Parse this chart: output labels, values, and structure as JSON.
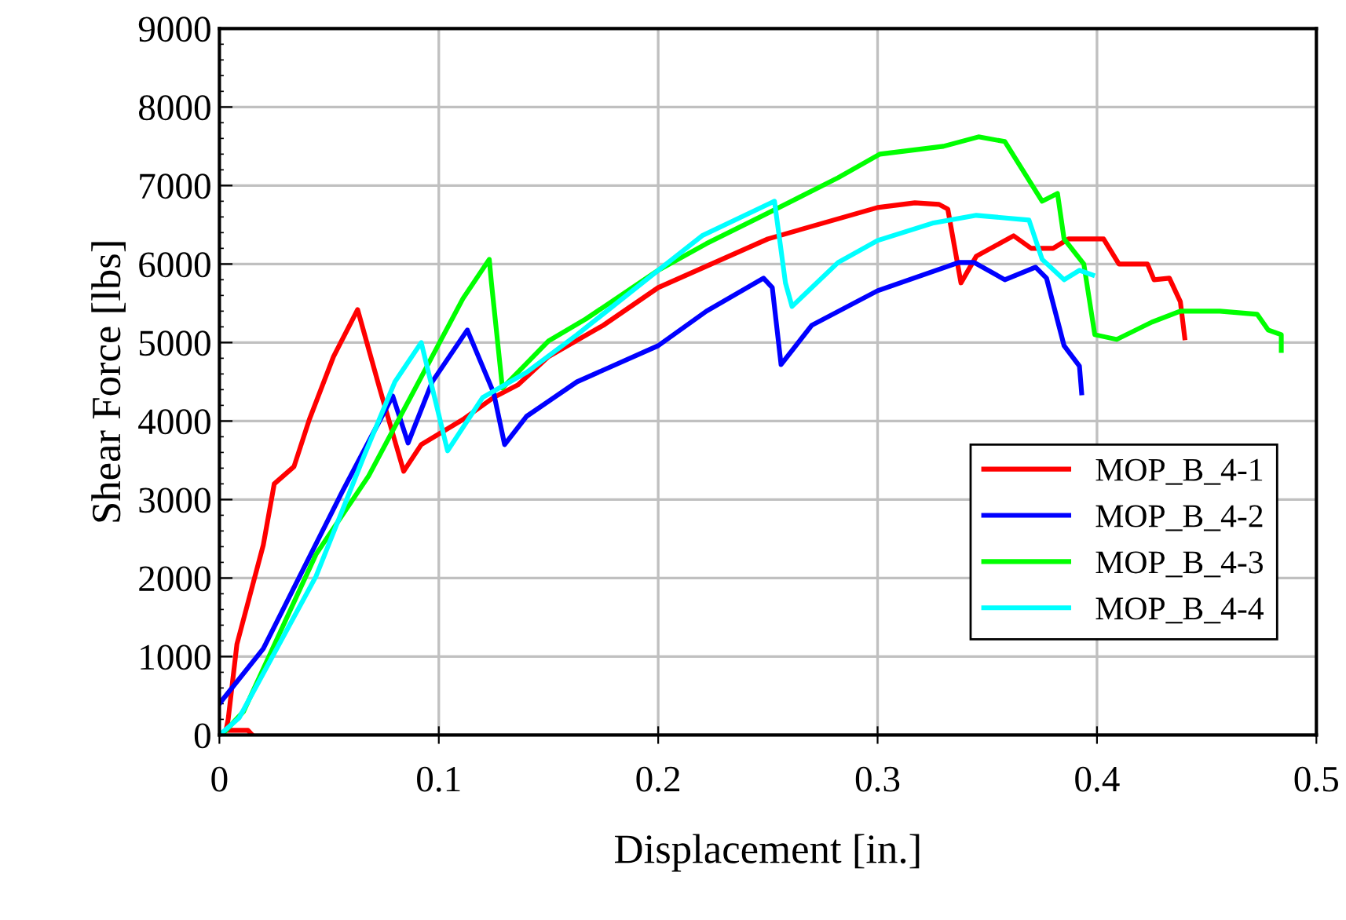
{
  "chart_data": {
    "type": "line",
    "xlabel": "Displacement [in.]",
    "ylabel": "Shear Force [lbs]",
    "xlim": [
      0,
      0.5
    ],
    "ylim": [
      0,
      9000
    ],
    "xticks": [
      0,
      0.1,
      0.2,
      0.3,
      0.4,
      0.5
    ],
    "yticks": [
      0,
      1000,
      2000,
      3000,
      4000,
      5000,
      6000,
      7000,
      8000,
      9000
    ],
    "grid": true,
    "legend": "bottom right",
    "marker": "none",
    "line_style": "solid",
    "series": [
      {
        "name": "MOP_B_4-1",
        "color": "#ff0000",
        "x": [
          0.015,
          0.013,
          0.003,
          0.004,
          0.008,
          0.02,
          0.025,
          0.034,
          0.041,
          0.052,
          0.063,
          0.073,
          0.084,
          0.092,
          0.111,
          0.125,
          0.136,
          0.15,
          0.175,
          0.2,
          0.25,
          0.3,
          0.317,
          0.328,
          0.332,
          0.338,
          0.345,
          0.362,
          0.37,
          0.38,
          0.387,
          0.403,
          0.41,
          0.423,
          0.426,
          0.433,
          0.438,
          0.44
        ],
        "values": [
          0,
          60,
          60,
          200,
          1160,
          2420,
          3200,
          3420,
          4020,
          4820,
          5420,
          4420,
          3360,
          3700,
          4020,
          4300,
          4460,
          4820,
          5220,
          5700,
          6320,
          6720,
          6780,
          6760,
          6700,
          5760,
          6100,
          6360,
          6200,
          6200,
          6320,
          6320,
          6000,
          6000,
          5800,
          5820,
          5520,
          5060
        ]
      },
      {
        "name": "MOP_B_4-2",
        "color": "#0000ff",
        "x": [
          0,
          0.02,
          0.056,
          0.079,
          0.086,
          0.097,
          0.113,
          0.125,
          0.13,
          0.14,
          0.163,
          0.2,
          0.222,
          0.248,
          0.252,
          0.256,
          0.27,
          0.3,
          0.337,
          0.344,
          0.358,
          0.372,
          0.377,
          0.385,
          0.392,
          0.393
        ],
        "values": [
          400,
          1100,
          3100,
          4320,
          3720,
          4500,
          5160,
          4360,
          3700,
          4060,
          4500,
          4960,
          5400,
          5820,
          5700,
          4720,
          5220,
          5660,
          6020,
          6020,
          5800,
          5960,
          5820,
          4960,
          4700,
          4360
        ]
      },
      {
        "name": "MOP_B_4-3",
        "color": "#00ff00",
        "x": [
          0.001,
          0.011,
          0.044,
          0.068,
          0.092,
          0.111,
          0.123,
          0.124,
          0.129,
          0.15,
          0.167,
          0.2,
          0.222,
          0.248,
          0.282,
          0.301,
          0.33,
          0.346,
          0.358,
          0.375,
          0.382,
          0.385,
          0.394,
          0.399,
          0.409,
          0.425,
          0.438,
          0.456,
          0.473,
          0.478,
          0.484,
          0.484
        ],
        "values": [
          0,
          300,
          2300,
          3300,
          4560,
          5560,
          6060,
          5760,
          4420,
          5020,
          5300,
          5920,
          6260,
          6620,
          7100,
          7400,
          7500,
          7620,
          7560,
          6800,
          6900,
          6320,
          6000,
          5100,
          5040,
          5260,
          5400,
          5400,
          5360,
          5160,
          5100,
          4900
        ]
      },
      {
        "name": "MOP_B_4-4",
        "color": "#00ffff",
        "x": [
          0,
          0.009,
          0.044,
          0.066,
          0.08,
          0.092,
          0.104,
          0.12,
          0.14,
          0.163,
          0.2,
          0.22,
          0.253,
          0.258,
          0.261,
          0.282,
          0.3,
          0.325,
          0.345,
          0.369,
          0.375,
          0.385,
          0.392,
          0.398
        ],
        "values": [
          0,
          220,
          2020,
          3560,
          4500,
          5000,
          3620,
          4300,
          4620,
          5100,
          5920,
          6360,
          6800,
          5760,
          5460,
          6020,
          6300,
          6520,
          6620,
          6560,
          6060,
          5800,
          5920,
          5860
        ]
      }
    ]
  }
}
